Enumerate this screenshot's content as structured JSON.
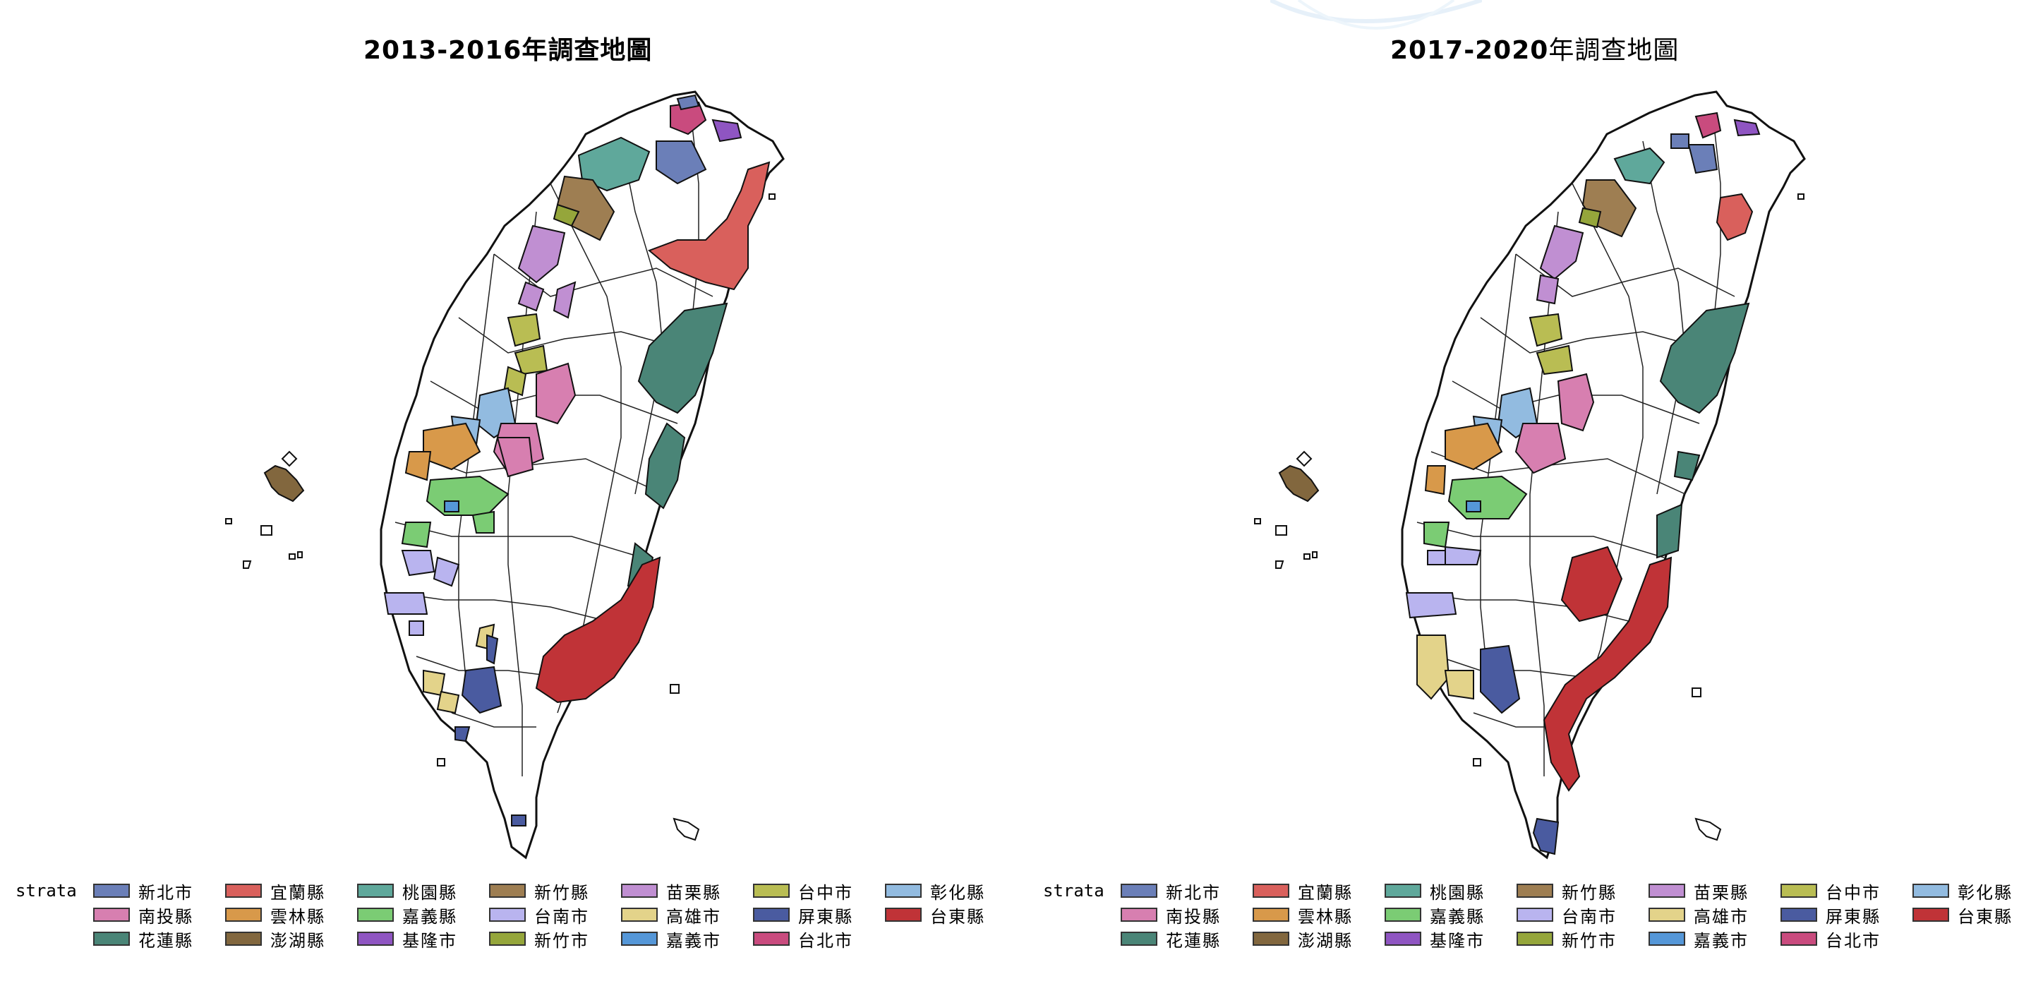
{
  "strata_label": "strata",
  "colors": {
    "new_taipei": "#6b7fb8",
    "yilan": "#d9605c",
    "taoyuan": "#5fa89b",
    "hsinchu_county": "#9e7e52",
    "miaoli": "#c08fd2",
    "taichung": "#b9bd53",
    "changhua": "#92bbe0",
    "nantou": "#d77fb0",
    "yunlin": "#d8994a",
    "chiayi_county": "#7bcc74",
    "tainan": "#b9b4ef",
    "kaohsiung": "#e3d38a",
    "pingtung": "#4a5ba0",
    "taitung": "#c03337",
    "hualien": "#4a8577",
    "penghu": "#82673e",
    "keelung": "#8f55c2",
    "hsinchu_city": "#95a63b",
    "chiayi_city": "#5597d8",
    "taipei": "#c94b7e"
  },
  "panels": [
    {
      "title_year": "2013-2016",
      "title_suffix": "年調查地圖",
      "legend": [
        {
          "label": "新北市",
          "key": "new_taipei"
        },
        {
          "label": "宜蘭縣",
          "key": "yilan"
        },
        {
          "label": "桃園縣",
          "key": "taoyuan"
        },
        {
          "label": "新竹縣",
          "key": "hsinchu_county"
        },
        {
          "label": "苗栗縣",
          "key": "miaoli"
        },
        {
          "label": "台中市",
          "key": "taichung"
        },
        {
          "label": "彰化縣",
          "key": "changhua"
        },
        {
          "label": "南投縣",
          "key": "nantou"
        },
        {
          "label": "雲林縣",
          "key": "yunlin"
        },
        {
          "label": "嘉義縣",
          "key": "chiayi_county"
        },
        {
          "label": "台南市",
          "key": "tainan"
        },
        {
          "label": "高雄市",
          "key": "kaohsiung"
        },
        {
          "label": "屏東縣",
          "key": "pingtung"
        },
        {
          "label": "台東縣",
          "key": "taitung"
        },
        {
          "label": "花蓮縣",
          "key": "hualien"
        },
        {
          "label": "澎湖縣",
          "key": "penghu"
        },
        {
          "label": "基隆市",
          "key": "keelung"
        },
        {
          "label": "新竹市",
          "key": "hsinchu_city"
        },
        {
          "label": "嘉義市",
          "key": "chiayi_city"
        },
        {
          "label": "台北市",
          "key": "taipei"
        }
      ]
    },
    {
      "title_year": "2017-2020",
      "title_suffix": "年調查地圖",
      "legend": [
        {
          "label": "新北市",
          "key": "new_taipei"
        },
        {
          "label": "宜蘭縣",
          "key": "yilan"
        },
        {
          "label": "桃園縣",
          "key": "taoyuan"
        },
        {
          "label": "新竹縣",
          "key": "hsinchu_county"
        },
        {
          "label": "苗栗縣",
          "key": "miaoli"
        },
        {
          "label": "台中市",
          "key": "taichung"
        },
        {
          "label": "彰化縣",
          "key": "changhua"
        },
        {
          "label": "南投縣",
          "key": "nantou"
        },
        {
          "label": "雲林縣",
          "key": "yunlin"
        },
        {
          "label": "嘉義縣",
          "key": "chiayi_county"
        },
        {
          "label": "台南市",
          "key": "tainan"
        },
        {
          "label": "高雄市",
          "key": "kaohsiung"
        },
        {
          "label": "屏東縣",
          "key": "pingtung"
        },
        {
          "label": "台東縣",
          "key": "taitung"
        },
        {
          "label": "花蓮縣",
          "key": "hualien"
        },
        {
          "label": "澎湖縣",
          "key": "penghu"
        },
        {
          "label": "基隆市",
          "key": "keelung"
        },
        {
          "label": "新竹市",
          "key": "hsinchu_city"
        },
        {
          "label": "嘉義市",
          "key": "chiayi_city"
        },
        {
          "label": "台北市",
          "key": "taipei"
        }
      ]
    }
  ]
}
